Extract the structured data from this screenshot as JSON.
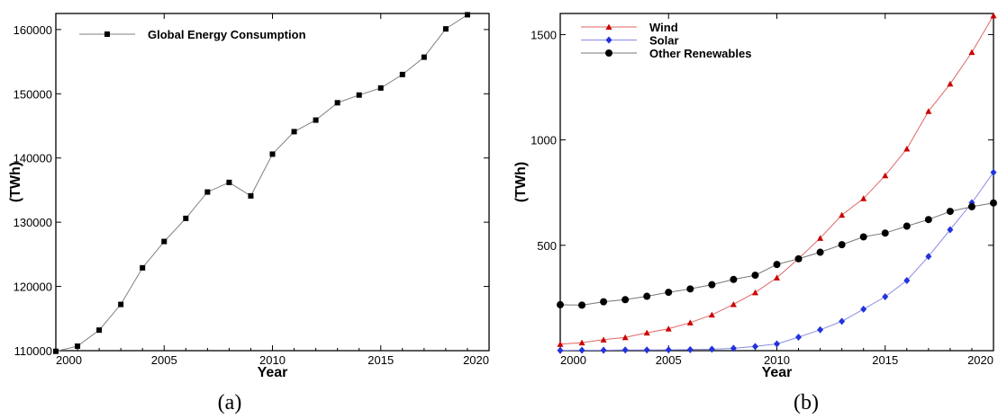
{
  "chart_data": [
    {
      "type": "line",
      "panel": "(a)",
      "xlabel": "Year",
      "ylabel": "(TWh)",
      "xlim": [
        2000,
        2020
      ],
      "ylim": [
        110000,
        162500
      ],
      "xticks": [
        2000,
        2005,
        2010,
        2015,
        2020
      ],
      "yticks": [
        110000,
        120000,
        130000,
        140000,
        150000,
        160000
      ],
      "legend_position": "top-left",
      "x": [
        2000,
        2001,
        2002,
        2003,
        2004,
        2005,
        2006,
        2007,
        2008,
        2009,
        2010,
        2011,
        2012,
        2013,
        2014,
        2015,
        2016,
        2017,
        2018,
        2019
      ],
      "series": [
        {
          "name": "Global Energy Consumption",
          "color": "#808080",
          "marker": "square",
          "marker_color": "#000000",
          "values": [
            109900,
            110700,
            113200,
            117200,
            122900,
            127000,
            130600,
            134700,
            136200,
            134100,
            140600,
            144100,
            145900,
            148600,
            149800,
            150900,
            153000,
            155700,
            160100,
            162300
          ]
        }
      ]
    },
    {
      "type": "line",
      "panel": "(b)",
      "xlabel": "Year",
      "ylabel": "(TWh)",
      "xlim": [
        2000,
        2020
      ],
      "ylim": [
        0,
        1600
      ],
      "xticks": [
        2000,
        2005,
        2010,
        2015,
        2020
      ],
      "yticks": [
        500,
        1000,
        1500
      ],
      "legend_position": "top-left",
      "x": [
        2000,
        2001,
        2002,
        2003,
        2004,
        2005,
        2006,
        2007,
        2008,
        2009,
        2010,
        2011,
        2012,
        2013,
        2014,
        2015,
        2016,
        2017,
        2018,
        2019,
        2020
      ],
      "series": [
        {
          "name": "Wind",
          "color": "#e06666",
          "marker": "triangle",
          "marker_color": "#cc0000",
          "values": [
            31,
            38,
            52,
            63,
            85,
            104,
            133,
            170,
            220,
            276,
            346,
            436,
            534,
            644,
            722,
            831,
            958,
            1136,
            1266,
            1416,
            1590
          ]
        },
        {
          "name": "Solar",
          "color": "#8a8ae6",
          "marker": "diamond",
          "marker_color": "#2233dd",
          "values": [
            1,
            2,
            2,
            3,
            3,
            4,
            5,
            7,
            11,
            20,
            32,
            64,
            99,
            139,
            197,
            256,
            333,
            447,
            574,
            702,
            846
          ]
        },
        {
          "name": "Other Renewables",
          "color": "#777777",
          "marker": "circle",
          "marker_color": "#000000",
          "values": [
            218,
            216,
            232,
            242,
            258,
            277,
            293,
            313,
            338,
            358,
            409,
            436,
            467,
            503,
            540,
            558,
            591,
            622,
            661,
            683,
            701
          ]
        }
      ]
    }
  ],
  "captions": [
    "(a)",
    "(b)"
  ]
}
